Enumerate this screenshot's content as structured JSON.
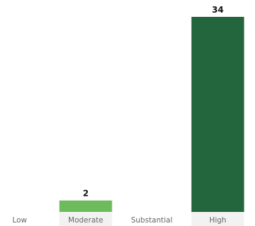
{
  "chart_data": {
    "type": "bar",
    "categories": [
      "Low",
      "Moderate",
      "Substantial",
      "High"
    ],
    "values": [
      0,
      2,
      0,
      34
    ],
    "value_labels": [
      "",
      "2",
      "",
      "34"
    ],
    "ylim": [
      0,
      34
    ],
    "grid": false,
    "colors": {
      "Moderate": "#6dbb5c",
      "High": "#23663d",
      "category_band": "#f2f2f2"
    }
  }
}
